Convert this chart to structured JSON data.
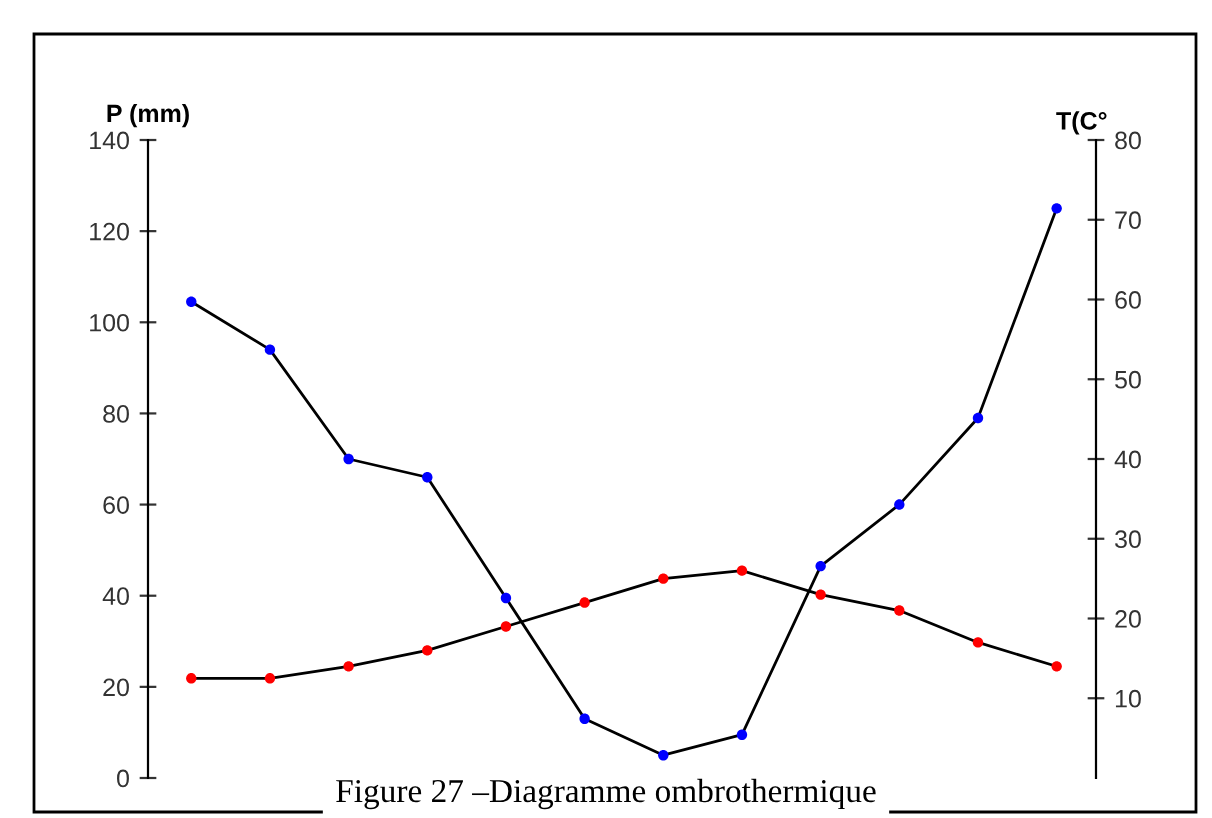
{
  "chart_data": {
    "type": "line",
    "ylabel": "P (mm)",
    "y2label": "T(C°",
    "categories": [
      null,
      null,
      null,
      null,
      null,
      null,
      null,
      null,
      null,
      null,
      null,
      null
    ],
    "series": [
      {
        "color": "#000000",
        "colors": [
          "#0000ff",
          "#0000ff",
          "#0000ff",
          "#0000ff",
          "#0000ff",
          "#0000ff",
          "#0000ff",
          "#0000ff",
          "#0000ff",
          "#0000ff",
          "#0000ff",
          "#0000ff"
        ],
        "values": [
          104.5,
          94,
          70,
          66,
          39.5,
          13,
          5,
          9.5,
          46.5,
          60,
          79,
          125
        ]
      },
      {
        "color": "#000000",
        "colors": [
          "#ff0000",
          "#ff0000",
          "#ff0000",
          "#ff0000",
          "#ff0000",
          "#ff0000",
          "#ff0000",
          "#ff0000",
          "#ff0000",
          "#ff0000",
          "#ff0000",
          "#ff0000"
        ],
        "axis": "y2",
        "values": [
          12.5,
          12.5,
          14,
          16,
          19,
          22,
          25,
          26,
          23,
          21,
          17,
          14
        ]
      }
    ],
    "ylim": [
      0,
      140
    ],
    "yticks": [
      0,
      20,
      40,
      60,
      80,
      100,
      120,
      140
    ],
    "y2lim": [
      0,
      80
    ],
    "y2ticks": [
      10,
      20,
      30,
      40,
      50,
      60,
      70,
      80
    ],
    "marker": "circle",
    "grid": false,
    "legend": false,
    "annotations": [
      "Figure 27 –Diagramme ombrothermique"
    ]
  }
}
